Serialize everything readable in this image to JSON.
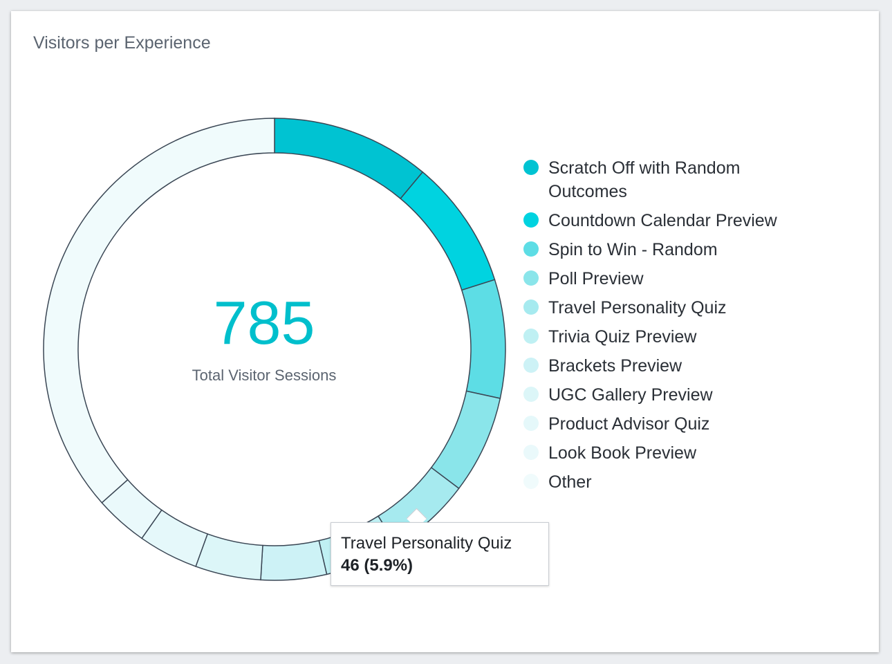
{
  "card": {
    "title": "Visitors per Experience"
  },
  "center": {
    "value": "785",
    "label": "Total Visitor Sessions"
  },
  "tooltip": {
    "label": "Travel Personality Quiz",
    "value": "46 (5.9%)"
  },
  "chart_data": {
    "type": "pie",
    "total": 785,
    "labels": [
      "Scratch Off with Random Outcomes",
      "Countdown Calendar Preview",
      "Spin to Win - Random",
      "Poll Preview",
      "Travel Personality Quiz",
      "Trivia Quiz Preview",
      "Brackets Preview",
      "UGC Gallery Preview",
      "Product Advisor Quiz",
      "Look Book Preview",
      "Other"
    ],
    "values": [
      87,
      71,
      65,
      54,
      46,
      41,
      36,
      36,
      33,
      29,
      287
    ],
    "colors": [
      "#00c3d2",
      "#00d3e0",
      "#5ddde5",
      "#8ae5ea",
      "#a6eaef",
      "#bff0f3",
      "#cdf2f6",
      "#dcf6f8",
      "#e5f8fa",
      "#eaf9fb",
      "#f0fbfc"
    ],
    "highlighted": "Travel Personality Quiz",
    "legend_position": "right"
  }
}
